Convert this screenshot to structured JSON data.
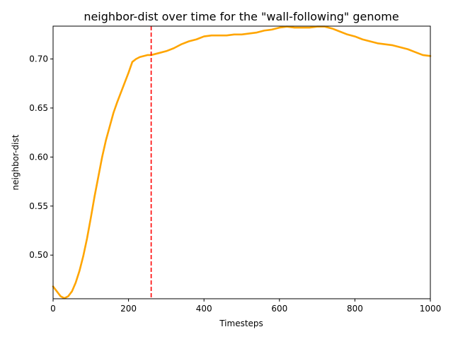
{
  "chart_data": {
    "type": "line",
    "title": "neighbor-dist over time for the \"wall-following\" genome",
    "xlabel": "Timesteps",
    "ylabel": "neighbor-dist",
    "xlim": [
      0,
      1000
    ],
    "ylim": [
      0.4555,
      0.7335
    ],
    "xticks": [
      0,
      200,
      400,
      600,
      800,
      1000
    ],
    "yticks": [
      0.5,
      0.55,
      0.6,
      0.65,
      0.7
    ],
    "xtick_labels": [
      "0",
      "200",
      "400",
      "600",
      "800",
      "1000"
    ],
    "ytick_labels": [
      "0.50",
      "0.55",
      "0.60",
      "0.65",
      "0.70"
    ],
    "grid": false,
    "series": [
      {
        "color": "#ffa500",
        "x": [
          0,
          10,
          20,
          30,
          40,
          50,
          60,
          70,
          80,
          90,
          100,
          110,
          120,
          130,
          140,
          150,
          160,
          170,
          180,
          190,
          200,
          210,
          220,
          230,
          240,
          250,
          260,
          270,
          280,
          300,
          320,
          340,
          360,
          380,
          400,
          420,
          440,
          460,
          480,
          500,
          520,
          540,
          560,
          580,
          600,
          620,
          640,
          660,
          680,
          700,
          720,
          740,
          760,
          780,
          800,
          820,
          840,
          860,
          880,
          900,
          920,
          940,
          960,
          980,
          1000
        ],
        "y": [
          0.468,
          0.463,
          0.458,
          0.456,
          0.458,
          0.463,
          0.472,
          0.484,
          0.499,
          0.517,
          0.538,
          0.56,
          0.58,
          0.6,
          0.617,
          0.631,
          0.645,
          0.656,
          0.666,
          0.676,
          0.686,
          0.697,
          0.7,
          0.702,
          0.703,
          0.704,
          0.704,
          0.705,
          0.706,
          0.708,
          0.711,
          0.715,
          0.718,
          0.72,
          0.723,
          0.724,
          0.724,
          0.724,
          0.725,
          0.725,
          0.726,
          0.727,
          0.729,
          0.73,
          0.732,
          0.733,
          0.732,
          0.732,
          0.732,
          0.733,
          0.733,
          0.731,
          0.728,
          0.725,
          0.723,
          0.72,
          0.718,
          0.716,
          0.715,
          0.714,
          0.712,
          0.71,
          0.707,
          0.704,
          0.703
        ]
      }
    ],
    "vline": {
      "x": 260,
      "color": "#ff0000",
      "style": "dashed"
    }
  }
}
